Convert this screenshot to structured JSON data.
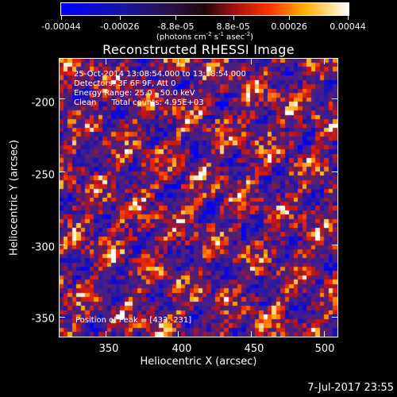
{
  "colorbar": {
    "tick_labels": [
      "-0.00044",
      "-0.00026",
      "-8.8e-05",
      "8.8e-05",
      "0.00026",
      "0.00044"
    ],
    "tick_values": [
      -0.00044,
      -0.00026,
      -8.8e-05,
      8.8e-05,
      0.00026,
      0.00044
    ],
    "range": [
      -0.00044,
      0.00044
    ],
    "units_main": "(photons cm",
    "units_exp1": "-2",
    "units_mid1": " s",
    "units_exp2": "-1",
    "units_mid2": " asec",
    "units_exp3": "-2",
    "units_end": ")"
  },
  "plot": {
    "title": "Reconstructed RHESSI Image",
    "annotations": [
      "25-Oct-2014 13:08:54.000 to 13:18:54.000",
      "Detectors: 3F 6F 9F, Att 0",
      "Energy Range: 25.0 - 50.0 keV",
      "Clean      Total counts: 4.95E+03"
    ],
    "peak_label": "Position of Peak = [433,-231]",
    "x_axis_title": "Heliocentric X (arcsec)",
    "y_axis_title": "Heliocentric Y (arcsec)",
    "x_ticks": [
      "350",
      "400",
      "450",
      "500"
    ],
    "y_ticks": [
      "-200",
      "-250",
      "-300",
      "-350"
    ]
  },
  "footer": {
    "date": "7-Jul-2017 23:55"
  },
  "colors": {
    "background": "#000000",
    "colormap": [
      "#0000ff",
      "#20108a",
      "#3a1a8c",
      "#7a1a6a",
      "#c81e18",
      "#ff6a00",
      "#ffc000",
      "#ffffff"
    ]
  },
  "chart_data": {
    "type": "heatmap",
    "title": "Reconstructed RHESSI Image",
    "xlabel": "Heliocentric X (arcsec)",
    "ylabel": "Heliocentric Y (arcsec)",
    "xlim": [
      318,
      510
    ],
    "ylim": [
      -364,
      -172
    ],
    "x_ticks": [
      350,
      400,
      450,
      500
    ],
    "y_ticks": [
      -200,
      -250,
      -300,
      -350
    ],
    "value_range": [
      -0.00044,
      0.00044
    ],
    "value_units": "photons cm^-2 s^-1 asec^-2",
    "peak_position": [
      433,
      -231
    ],
    "total_counts": 4950,
    "colorbar_position": "top"
  }
}
